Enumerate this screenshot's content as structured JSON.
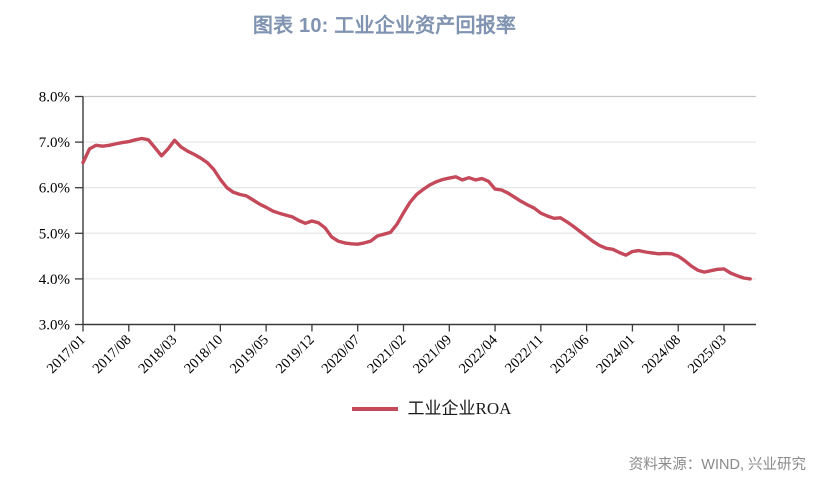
{
  "figure": {
    "title": "图表 10: 工业企业资产回报率",
    "source": "资料来源：WIND, 兴业研究"
  },
  "legend": {
    "label": "工业企业ROA"
  },
  "colors": {
    "line": "#C4495A",
    "title": "#8093B0",
    "source_text": "#8A8A8A",
    "axis": "#3A3A3A",
    "gridline": "#E9E9E9",
    "top_border": "#C6C6C6"
  },
  "chart_data": {
    "type": "line",
    "title": "图表 10: 工业企业资产回报率",
    "xlabel": "",
    "ylabel": "",
    "ylim": [
      3.0,
      8.0
    ],
    "grid": "horizontal",
    "legend_position": "bottom",
    "y_tick_values": [
      8,
      7,
      6,
      5,
      4,
      3
    ],
    "y_tick_labels": [
      "8.0%",
      "7.0%",
      "6.0%",
      "5.0%",
      "4.0%",
      "3.0%"
    ],
    "x_tick_every": 7,
    "x_tick_labels": [
      "2017/01",
      "2017/08",
      "2018/03",
      "2018/10",
      "2019/05",
      "2019/12",
      "2020/07",
      "2021/02",
      "2021/09",
      "2022/04",
      "2022/11",
      "2023/06",
      "2024/01",
      "2024/08",
      "2025/03"
    ],
    "x": [
      "2017/01",
      "2017/02",
      "2017/03",
      "2017/04",
      "2017/05",
      "2017/06",
      "2017/07",
      "2017/08",
      "2017/09",
      "2017/10",
      "2017/11",
      "2017/12",
      "2018/01",
      "2018/02",
      "2018/03",
      "2018/04",
      "2018/05",
      "2018/06",
      "2018/07",
      "2018/08",
      "2018/09",
      "2018/10",
      "2018/11",
      "2018/12",
      "2019/01",
      "2019/02",
      "2019/03",
      "2019/04",
      "2019/05",
      "2019/06",
      "2019/07",
      "2019/08",
      "2019/09",
      "2019/10",
      "2019/11",
      "2019/12",
      "2020/01",
      "2020/02",
      "2020/03",
      "2020/04",
      "2020/05",
      "2020/06",
      "2020/07",
      "2020/08",
      "2020/09",
      "2020/10",
      "2020/11",
      "2020/12",
      "2021/01",
      "2021/02",
      "2021/03",
      "2021/04",
      "2021/05",
      "2021/06",
      "2021/07",
      "2021/08",
      "2021/09",
      "2021/10",
      "2021/11",
      "2021/12",
      "2022/01",
      "2022/02",
      "2022/03",
      "2022/04",
      "2022/05",
      "2022/06",
      "2022/07",
      "2022/08",
      "2022/09",
      "2022/10",
      "2022/11",
      "2022/12",
      "2023/01",
      "2023/02",
      "2023/03",
      "2023/04",
      "2023/05",
      "2023/06",
      "2023/07",
      "2023/08",
      "2023/09",
      "2023/10",
      "2023/11",
      "2023/12",
      "2024/01",
      "2024/02",
      "2024/03",
      "2024/04",
      "2024/05",
      "2024/06",
      "2024/07",
      "2024/08",
      "2024/09",
      "2024/10",
      "2024/11",
      "2024/12",
      "2025/01",
      "2025/02",
      "2025/03",
      "2025/04",
      "2025/05",
      "2025/06",
      "2025/07"
    ],
    "series": [
      {
        "name": "工业企业ROA",
        "color": "#C4495A",
        "values": [
          6.55,
          6.85,
          6.93,
          6.91,
          6.93,
          6.96,
          6.99,
          7.01,
          7.05,
          7.08,
          7.05,
          6.88,
          6.7,
          6.85,
          7.04,
          6.89,
          6.8,
          6.73,
          6.65,
          6.55,
          6.4,
          6.18,
          6.0,
          5.9,
          5.85,
          5.82,
          5.73,
          5.64,
          5.57,
          5.49,
          5.44,
          5.4,
          5.36,
          5.28,
          5.22,
          5.27,
          5.23,
          5.12,
          4.92,
          4.83,
          4.79,
          4.77,
          4.76,
          4.79,
          4.83,
          4.94,
          4.98,
          5.02,
          5.2,
          5.45,
          5.68,
          5.85,
          5.96,
          6.06,
          6.13,
          6.18,
          6.21,
          6.24,
          6.17,
          6.22,
          6.17,
          6.2,
          6.14,
          5.97,
          5.95,
          5.88,
          5.79,
          5.7,
          5.62,
          5.55,
          5.44,
          5.38,
          5.33,
          5.34,
          5.25,
          5.15,
          5.04,
          4.93,
          4.82,
          4.73,
          4.67,
          4.65,
          4.58,
          4.52,
          4.6,
          4.62,
          4.59,
          4.57,
          4.55,
          4.56,
          4.55,
          4.5,
          4.4,
          4.28,
          4.19,
          4.15,
          4.18,
          4.21,
          4.22,
          4.13,
          4.07,
          4.02,
          4.0
        ]
      }
    ]
  }
}
